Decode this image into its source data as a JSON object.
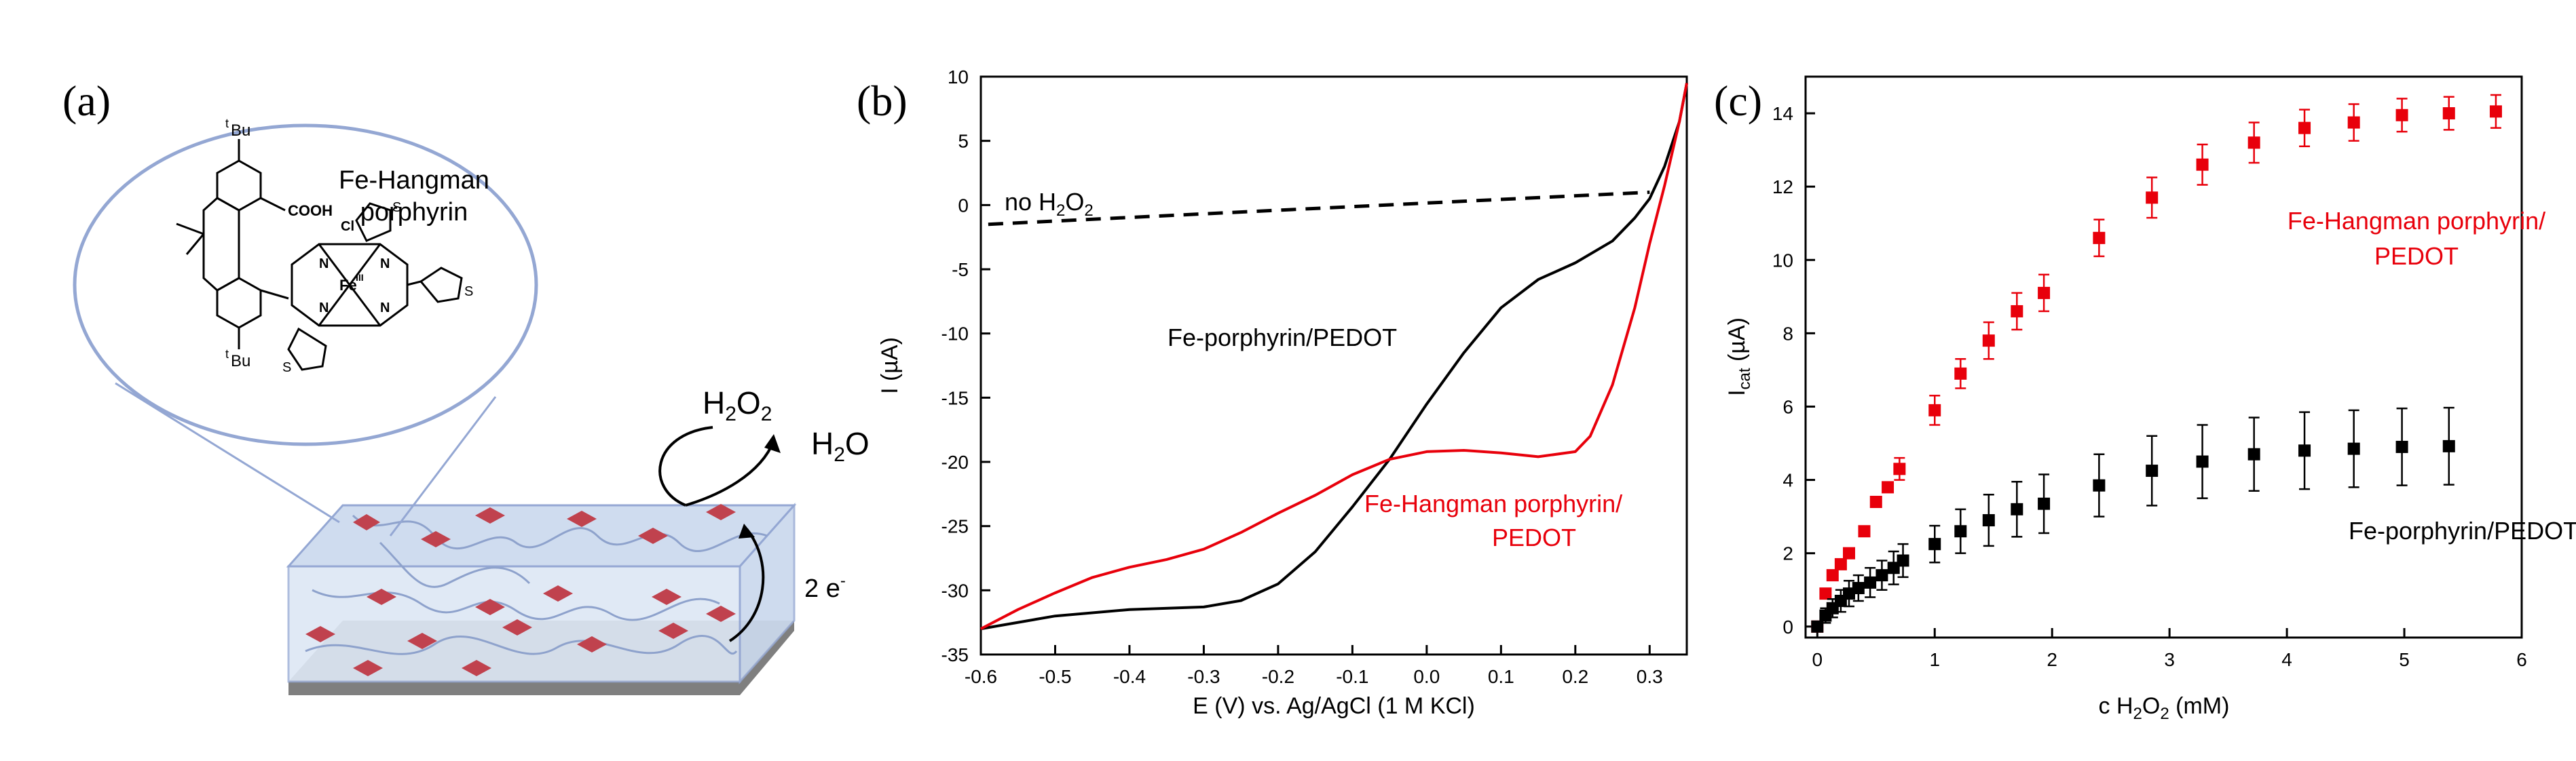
{
  "panel_labels": [
    "(a)",
    "(b)",
    "(c)"
  ],
  "schematic": {
    "bubble_title": [
      "Fe-Hangman",
      "porphyrin"
    ],
    "atom_labels": {
      "cooh": "COOH",
      "tbu": "Bu",
      "t": "t",
      "cl": "Cl",
      "fe": "Fe",
      "fe_ox": "III",
      "n": "N",
      "s": "S"
    },
    "reactant": {
      "main": "H",
      "sub": "2",
      "rest": "O",
      "sub2": "2"
    },
    "product": {
      "main": "H",
      "sub": "2",
      "rest": "O"
    },
    "electrons": {
      "main": "2 e",
      "sup": "-"
    },
    "colors": {
      "bubble_stroke": "#94a7d3",
      "film_fill": "#cfdcef",
      "square": "#c0424e",
      "substrate": "#7f7f7f"
    }
  },
  "chart_data": [
    {
      "type": "line",
      "xlabel": "E (V) vs. Ag/AgCl (1 M KCl)",
      "ylabel": "I (µA)",
      "xlim": [
        -0.6,
        0.35
      ],
      "ylim": [
        -35,
        10
      ],
      "xticks": [
        -0.6,
        -0.5,
        -0.4,
        -0.3,
        -0.2,
        -0.1,
        0.0,
        0.1,
        0.2,
        0.3
      ],
      "xtick_labels": [
        "-0.6",
        "-0.5",
        "-0.4",
        "-0.3",
        "-0.2",
        "-0.1",
        "0.0",
        "0.1",
        "0.2",
        "0.3"
      ],
      "yticks": [
        10,
        5,
        0,
        -5,
        -10,
        -15,
        -20,
        -25,
        -30,
        -35
      ],
      "ytick_labels": [
        "10",
        "5",
        "0",
        "-5",
        "-10",
        "-15",
        "-20",
        "-25",
        "-30",
        "-35"
      ],
      "series": [
        {
          "name": "no H2O2",
          "label_parts": {
            "main": "no H",
            "sub": "2",
            "rest": "O",
            "sub2": "2"
          },
          "color": "#000000",
          "dashed": true,
          "x": [
            -0.59,
            0.3
          ],
          "y": [
            -1.5,
            1.0
          ]
        },
        {
          "name": "Fe-porphyrin/PEDOT",
          "color": "#000000",
          "dashed": false,
          "x": [
            -0.6,
            -0.5,
            -0.4,
            -0.3,
            -0.25,
            -0.2,
            -0.15,
            -0.1,
            -0.05,
            0.0,
            0.05,
            0.1,
            0.15,
            0.2,
            0.25,
            0.28,
            0.3,
            0.32,
            0.34,
            0.35
          ],
          "y": [
            -33.0,
            -32.0,
            -31.5,
            -31.3,
            -30.8,
            -29.5,
            -27.0,
            -23.5,
            -19.8,
            -15.5,
            -11.5,
            -8.0,
            -5.8,
            -4.5,
            -2.8,
            -1.0,
            0.5,
            3.0,
            6.5,
            9.5
          ]
        },
        {
          "name": "Fe-Hangman porphyrin/ PEDOT",
          "label_lines": [
            "Fe-Hangman porphyrin/",
            "PEDOT"
          ],
          "color": "#e8000b",
          "dashed": false,
          "x": [
            -0.6,
            -0.55,
            -0.5,
            -0.45,
            -0.4,
            -0.35,
            -0.3,
            -0.25,
            -0.2,
            -0.15,
            -0.1,
            -0.05,
            0.0,
            0.05,
            0.1,
            0.15,
            0.2,
            0.22,
            0.25,
            0.28,
            0.3,
            0.32,
            0.34,
            0.35
          ],
          "y": [
            -33.0,
            -31.5,
            -30.2,
            -29.0,
            -28.2,
            -27.6,
            -26.8,
            -25.5,
            -24.0,
            -22.6,
            -21.0,
            -19.8,
            -19.2,
            -19.1,
            -19.3,
            -19.6,
            -19.2,
            -18.0,
            -14.0,
            -8.0,
            -3.0,
            1.5,
            6.5,
            9.5
          ]
        }
      ]
    },
    {
      "type": "scatter",
      "xlabel_parts": {
        "main": "c H",
        "sub": "2",
        "rest": "O",
        "sub2": "2",
        "unit": " (mM)"
      },
      "ylabel_parts": {
        "main": "I",
        "sub": "cat",
        "rest": " (µA)"
      },
      "xlim": [
        -0.1,
        6.0
      ],
      "ylim": [
        -0.3,
        15.0
      ],
      "xticks": [
        0,
        1,
        2,
        3,
        4,
        5,
        6
      ],
      "xtick_labels": [
        "0",
        "1",
        "2",
        "3",
        "4",
        "5",
        "6"
      ],
      "yticks": [
        0,
        2,
        4,
        6,
        8,
        10,
        12,
        14
      ],
      "ytick_labels": [
        "0",
        "2",
        "4",
        "6",
        "8",
        "10",
        "12",
        "14"
      ],
      "series": [
        {
          "name": "Fe-Hangman porphyrin/ PEDOT",
          "label_lines": [
            "Fe-Hangman porphyrin/",
            "PEDOT"
          ],
          "color": "#e8000b",
          "x": [
            0.0,
            0.07,
            0.13,
            0.2,
            0.27,
            0.4,
            0.5,
            0.6,
            0.7,
            1.0,
            1.22,
            1.46,
            1.7,
            1.93,
            2.4,
            2.85,
            3.28,
            3.72,
            4.15,
            4.57,
            4.98,
            5.38,
            5.78
          ],
          "y": [
            0.0,
            0.9,
            1.4,
            1.7,
            2.0,
            2.6,
            3.4,
            3.8,
            4.3,
            5.9,
            6.9,
            7.8,
            8.6,
            9.1,
            10.6,
            11.7,
            12.6,
            13.2,
            13.6,
            13.75,
            13.95,
            14.0,
            14.05
          ],
          "err": [
            0.0,
            0.1,
            0.1,
            0.1,
            0.1,
            0.1,
            0.1,
            0.1,
            0.3,
            0.4,
            0.4,
            0.5,
            0.5,
            0.5,
            0.5,
            0.55,
            0.55,
            0.55,
            0.5,
            0.5,
            0.45,
            0.45,
            0.45
          ]
        },
        {
          "name": "Fe-porphyrin/PEDOT",
          "color": "#000000",
          "x": [
            0.0,
            0.07,
            0.13,
            0.2,
            0.27,
            0.35,
            0.45,
            0.55,
            0.65,
            0.73,
            1.0,
            1.22,
            1.46,
            1.7,
            1.93,
            2.4,
            2.85,
            3.28,
            3.72,
            4.15,
            4.57,
            4.98,
            5.38
          ],
          "y": [
            0.0,
            0.3,
            0.5,
            0.7,
            0.9,
            1.05,
            1.2,
            1.4,
            1.6,
            1.8,
            2.25,
            2.6,
            2.9,
            3.2,
            3.35,
            3.85,
            4.25,
            4.5,
            4.7,
            4.8,
            4.85,
            4.9,
            4.92
          ],
          "err": [
            0.0,
            0.2,
            0.25,
            0.3,
            0.35,
            0.35,
            0.4,
            0.4,
            0.45,
            0.45,
            0.5,
            0.6,
            0.7,
            0.75,
            0.8,
            0.85,
            0.95,
            1.0,
            1.0,
            1.05,
            1.05,
            1.05,
            1.05
          ]
        }
      ]
    }
  ]
}
